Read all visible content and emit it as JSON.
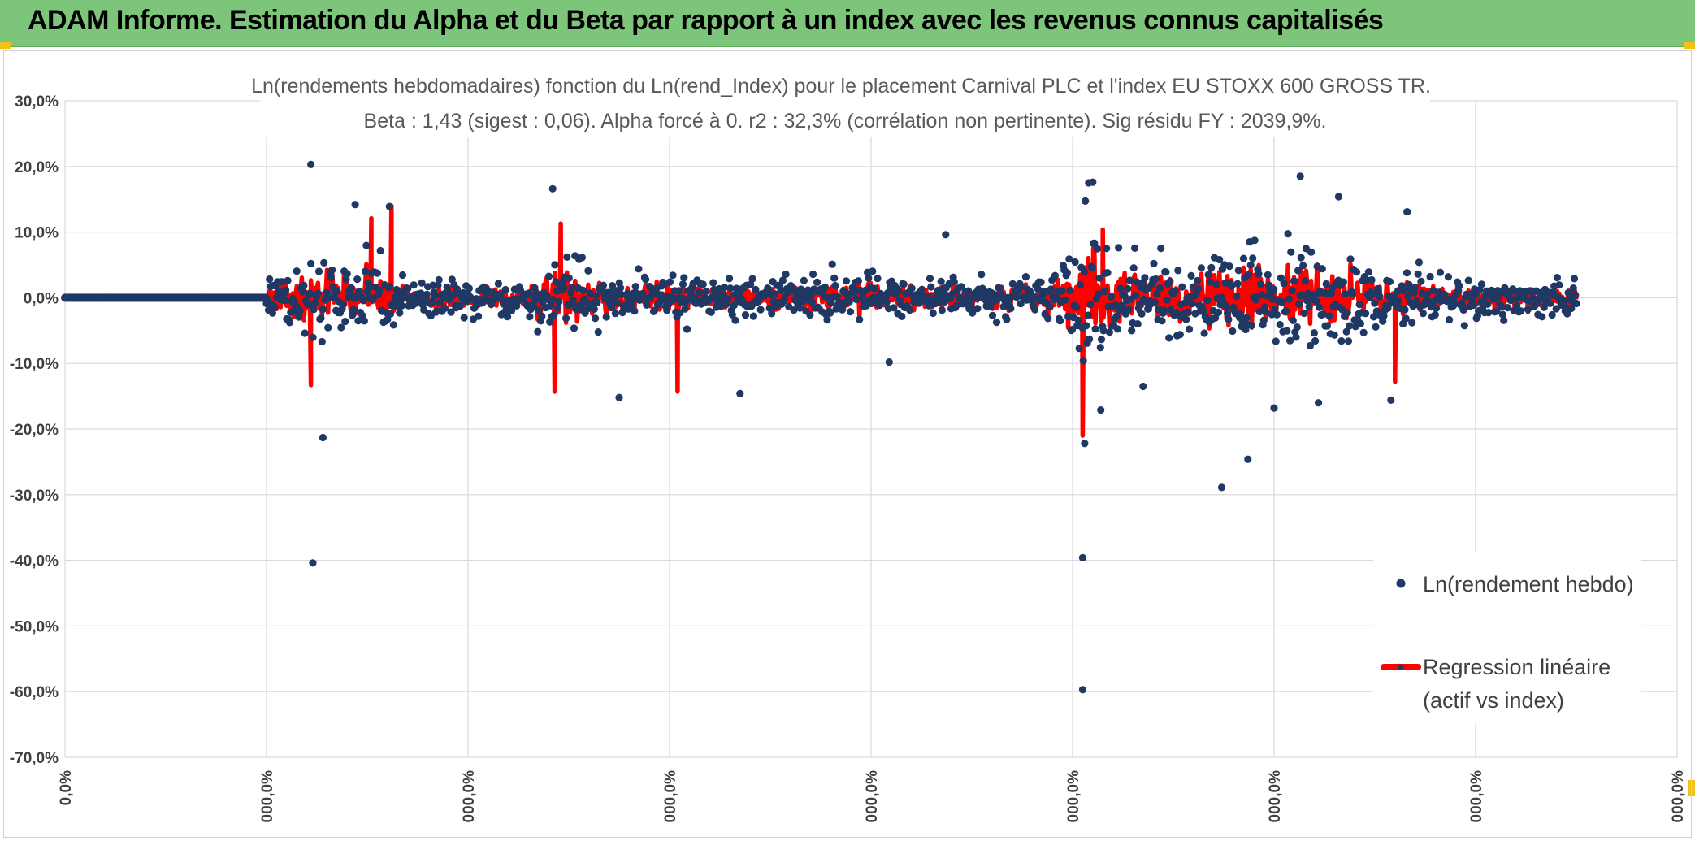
{
  "banner": {
    "title": "ADAM Informe. Estimation du Alpha et du Beta par rapport à un index avec les revenus connus capitalisés"
  },
  "colors": {
    "banner": "#7dc57a",
    "points": "#1f3864",
    "regression": "#ff0000",
    "grid": "#d9d9d9",
    "corner": "#f2c21a"
  },
  "chart_data": {
    "type": "scatter",
    "title_line1": "Ln(rendements hebdomadaires) fonction du Ln(rend_Index) pour le placement Carnival PLC et l'index EU STOXX 600 GROSS TR.",
    "title_line2": "Beta : 1,43 (sigest : 0,06). Alpha forcé à 0. r2 : 32,3% (corrélation non pertinente). Sig résidu FY : 2039,9%.",
    "ylim": [
      -70,
      30
    ],
    "y_ticks": [
      "30,0%",
      "20,0%",
      "10,0%",
      "0,0%",
      "-10,0%",
      "-20,0%",
      "-30,0%",
      "-40,0%",
      "-50,0%",
      "-60,0%",
      "-70,0%"
    ],
    "x_ticks": [
      "0,0%",
      "000,0%",
      "000,0%",
      "000,0%",
      "000,0%",
      "000,0%",
      "000,0%",
      "000,0%",
      "000,0%"
    ],
    "x_range": [
      0,
      8
    ],
    "legend": {
      "points_label": "Ln(rendement hebdo)",
      "regression_label_line1": "Regression linéaire",
      "regression_label_line2": "(actif vs index)"
    },
    "series": [
      {
        "name": "Ln(rendement hebdo)",
        "notable_points": [
          [
            1.22,
            20.3
          ],
          [
            1.28,
            -21.3
          ],
          [
            1.23,
            -40.4
          ],
          [
            2.42,
            16.6
          ],
          [
            1.44,
            14.2
          ],
          [
            1.61,
            13.9
          ],
          [
            2.75,
            -15.2
          ],
          [
            3.35,
            -14.6
          ],
          [
            4.37,
            9.6
          ],
          [
            5.05,
            -39.6
          ],
          [
            5.05,
            -59.7
          ],
          [
            5.06,
            -22.2
          ],
          [
            5.08,
            17.5
          ],
          [
            5.1,
            17.6
          ],
          [
            5.14,
            -17.1
          ],
          [
            6.13,
            18.5
          ],
          [
            6.32,
            15.4
          ],
          [
            5.74,
            -28.9
          ],
          [
            5.87,
            -24.6
          ],
          [
            6.22,
            -16.0
          ],
          [
            6.58,
            -15.6
          ],
          [
            6.66,
            13.1
          ],
          [
            5.35,
            -13.5
          ],
          [
            4.09,
            -9.8
          ],
          [
            6.0,
            -16.8
          ]
        ]
      },
      {
        "name": "Regression linéaire (actif vs index)",
        "notable_points": [
          [
            1.22,
            -13.3
          ],
          [
            1.52,
            12.1
          ],
          [
            1.62,
            14.0
          ],
          [
            2.46,
            11.3
          ],
          [
            2.43,
            -14.3
          ],
          [
            3.04,
            -14.3
          ],
          [
            5.05,
            -21.0
          ],
          [
            5.15,
            10.4
          ],
          [
            6.6,
            -12.8
          ]
        ]
      }
    ]
  }
}
